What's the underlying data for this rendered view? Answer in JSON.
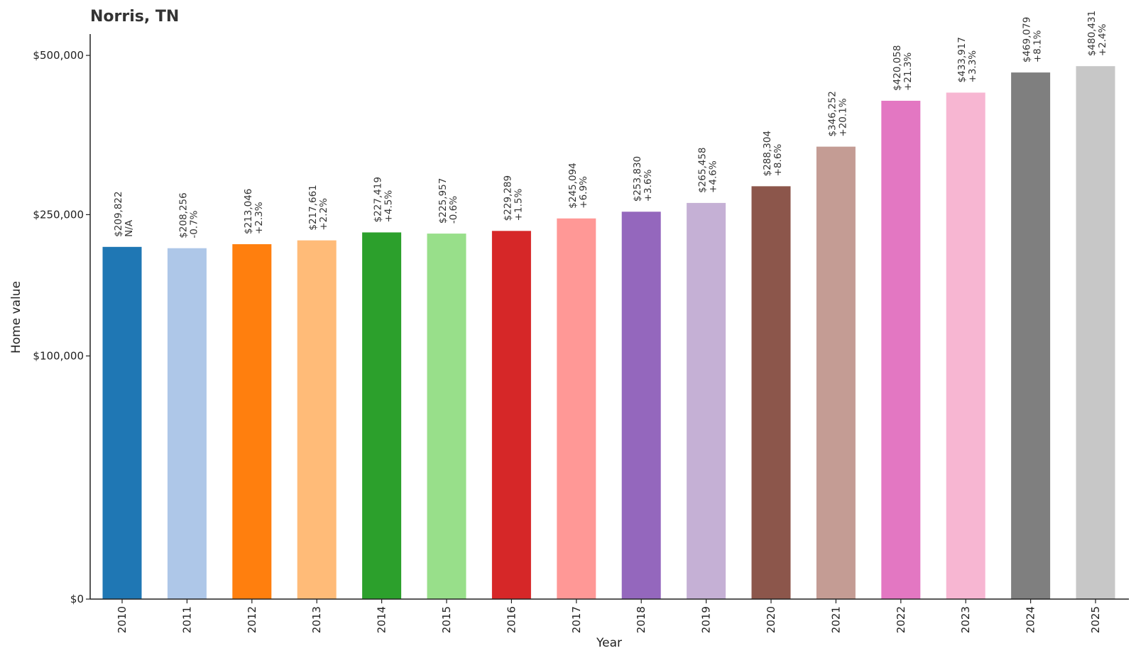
{
  "chart_data": {
    "type": "bar",
    "title": "Norris, TN",
    "xlabel": "Year",
    "ylabel": "Home value",
    "y_scale": "sqrt",
    "ylim": [
      0,
      540000
    ],
    "y_ticks": [
      0,
      100000,
      250000,
      500000
    ],
    "y_tick_labels": [
      "$0",
      "$100,000",
      "$250,000",
      "$500,000"
    ],
    "categories": [
      "2010",
      "2011",
      "2012",
      "2013",
      "2014",
      "2015",
      "2016",
      "2017",
      "2018",
      "2019",
      "2020",
      "2021",
      "2022",
      "2023",
      "2024",
      "2025"
    ],
    "values": [
      209822,
      208256,
      213046,
      217661,
      227419,
      225957,
      229289,
      245094,
      253830,
      265458,
      288304,
      346252,
      420058,
      433917,
      469079,
      480431
    ],
    "value_labels": [
      "$209,822",
      "$208,256",
      "$213,046",
      "$217,661",
      "$227,419",
      "$225,957",
      "$229,289",
      "$245,094",
      "$253,830",
      "$265,458",
      "$288,304",
      "$346,252",
      "$420,058",
      "$433,917",
      "$469,079",
      "$480,431"
    ],
    "change_labels": [
      "N/A",
      "-0.7%",
      "+2.3%",
      "+2.2%",
      "+4.5%",
      "-0.6%",
      "+1.5%",
      "+6.9%",
      "+3.6%",
      "+4.6%",
      "+8.6%",
      "+20.1%",
      "+21.3%",
      "+3.3%",
      "+8.1%",
      "+2.4%"
    ],
    "colors": [
      "#1f77b4",
      "#aec7e8",
      "#ff7f0e",
      "#ffbb78",
      "#2ca02c",
      "#98df8a",
      "#d62728",
      "#ff9896",
      "#9467bd",
      "#c5b0d5",
      "#8c564b",
      "#c49c94",
      "#e377c2",
      "#f7b6d2",
      "#7f7f7f",
      "#c7c7c7"
    ],
    "grid": false,
    "legend": "none"
  }
}
